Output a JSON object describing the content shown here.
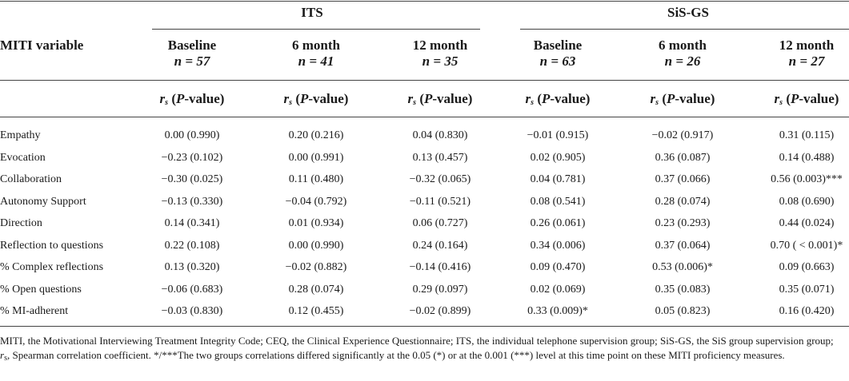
{
  "groups": {
    "its": "ITS",
    "sis": "SiS-GS"
  },
  "row_header": "MITI variable",
  "columns": [
    {
      "label": "Baseline",
      "n": "n = 57"
    },
    {
      "label": "6 month",
      "n": "n = 41"
    },
    {
      "label": "12 month",
      "n": "n = 35"
    },
    {
      "label": "Baseline",
      "n": "n = 63"
    },
    {
      "label": "6 month",
      "n": "n = 26"
    },
    {
      "label": "12 month",
      "n": "n = 27"
    }
  ],
  "stat_header": {
    "r": "r",
    "sub": "s",
    "p": "P",
    "rest": "-value)",
    "open": "("
  },
  "rows": [
    {
      "label": "Empathy",
      "cells": [
        "0.00 (0.990)",
        "0.20 (0.216)",
        "0.04 (0.830)",
        "−0.01 (0.915)",
        "−0.02 (0.917)",
        "0.31 (0.115)"
      ]
    },
    {
      "label": "Evocation",
      "cells": [
        "−0.23 (0.102)",
        "0.00 (0.991)",
        "0.13 (0.457)",
        "0.02 (0.905)",
        "0.36 (0.087)",
        "0.14 (0.488)"
      ]
    },
    {
      "label": "Collaboration",
      "cells": [
        "−0.30 (0.025)",
        "0.11 (0.480)",
        "−0.32 (0.065)",
        "0.04 (0.781)",
        "0.37 (0.066)",
        "0.56 (0.003)***"
      ]
    },
    {
      "label": "Autonomy Support",
      "cells": [
        "−0.13 (0.330)",
        "−0.04 (0.792)",
        "−0.11 (0.521)",
        "0.08 (0.541)",
        "0.28 (0.074)",
        "0.08 (0.690)"
      ]
    },
    {
      "label": "Direction",
      "cells": [
        "0.14 (0.341)",
        "0.01 (0.934)",
        "0.06 (0.727)",
        "0.26 (0.061)",
        "0.23 (0.293)",
        "0.44 (0.024)"
      ]
    },
    {
      "label": "Reflection to questions",
      "cells": [
        "0.22 (0.108)",
        "0.00 (0.990)",
        "0.24 (0.164)",
        "0.34 (0.006)",
        "0.37 (0.064)",
        "0.70 ( < 0.001)*"
      ]
    },
    {
      "label": "% Complex reflections",
      "cells": [
        "0.13 (0.320)",
        "−0.02 (0.882)",
        "−0.14 (0.416)",
        "0.09 (0.470)",
        "0.53 (0.006)*",
        "0.09 (0.663)"
      ]
    },
    {
      "label": "% Open questions",
      "cells": [
        "−0.06 (0.683)",
        "0.28 (0.074)",
        "0.29 (0.097)",
        "0.02 (0.069)",
        "0.35 (0.083)",
        "0.35 (0.071)"
      ]
    },
    {
      "label": "% MI-adherent",
      "cells": [
        "−0.03 (0.830)",
        "0.12 (0.455)",
        "−0.02 (0.899)",
        "0.33 (0.009)*",
        "0.05 (0.823)",
        "0.16 (0.420)"
      ]
    }
  ],
  "footnote": {
    "part1": "MITI, the Motivational Interviewing Treatment Integrity Code; CEQ, the Clinical Experience Questionnaire; ITS, the individual telephone supervision group; SiS-GS, the SiS group supervision group; ",
    "r": "r",
    "sub": "s",
    "part2": ", Spearman correlation coefficient. */***The two groups correlations differed significantly at the 0.05 (*) or at the 0.001 (***) level at this time point on these MITI proficiency measures."
  }
}
